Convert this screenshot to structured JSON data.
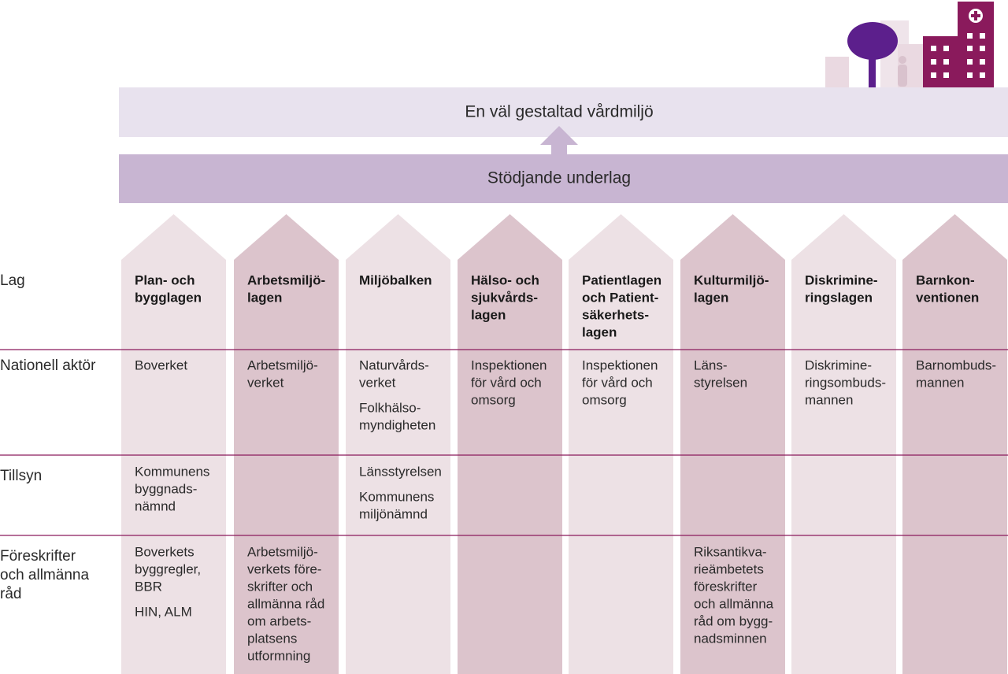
{
  "banner": {
    "goal": "En väl gestaltad vårdmiljö",
    "support": "Stödjande underlag"
  },
  "row_labels": [
    [
      "Lag"
    ],
    [
      "Nationell aktör"
    ],
    [
      "Tillsyn"
    ],
    [
      "Föreskrifter",
      "och allmänna",
      "råd"
    ]
  ],
  "columns": [
    {
      "law": [
        "Plan- och",
        "bygglagen"
      ],
      "actor": [
        [
          "Boverket"
        ]
      ],
      "supervision": [
        [
          "Kommunens",
          "byggnads-",
          "nämnd"
        ]
      ],
      "regulations": [
        [
          "Boverkets",
          "byggregler,",
          "BBR"
        ],
        [
          "HIN, ALM"
        ]
      ]
    },
    {
      "law": [
        "Arbetsmiljö-",
        "lagen"
      ],
      "actor": [
        [
          "Arbetsmiljö-",
          "verket"
        ]
      ],
      "supervision": [],
      "regulations": [
        [
          "Arbetsmiljö-",
          "verkets före-",
          "skrifter och",
          "allmänna råd",
          "om arbets-",
          "platsens",
          "utformning"
        ]
      ]
    },
    {
      "law": [
        "Miljöbalken"
      ],
      "actor": [
        [
          "Naturvårds-",
          "verket"
        ],
        [
          "Folkhälso-",
          "myndigheten"
        ]
      ],
      "supervision": [
        [
          "Länsstyrelsen"
        ],
        [
          "Kommunens",
          "miljönämnd"
        ]
      ],
      "regulations": []
    },
    {
      "law": [
        "Hälso- och",
        "sjukvårds-",
        "lagen"
      ],
      "actor": [
        [
          "Inspektionen",
          "för vård och",
          "omsorg"
        ]
      ],
      "supervision": [],
      "regulations": []
    },
    {
      "law": [
        "Patientlagen",
        "och Patient-",
        "säkerhets-",
        "lagen"
      ],
      "actor": [
        [
          "Inspektionen",
          "för vård och",
          "omsorg"
        ]
      ],
      "supervision": [],
      "regulations": []
    },
    {
      "law": [
        "Kulturmiljö-",
        "lagen"
      ],
      "actor": [
        [
          "Läns-",
          "styrelsen"
        ]
      ],
      "supervision": [],
      "regulations": [
        [
          "Riksantikva-",
          "rieämbetets",
          "föreskrifter",
          "och allmänna",
          "råd om bygg-",
          "nadsminnen"
        ]
      ]
    },
    {
      "law": [
        "Diskrimine-",
        "ringslagen"
      ],
      "actor": [
        [
          "Diskrimine-",
          "ringsombuds-",
          "mannen"
        ]
      ],
      "supervision": [],
      "regulations": []
    },
    {
      "law": [
        "Barnkon-",
        "ventionen"
      ],
      "actor": [
        [
          "Barnombuds-",
          "mannen"
        ]
      ],
      "supervision": [],
      "regulations": []
    }
  ]
}
